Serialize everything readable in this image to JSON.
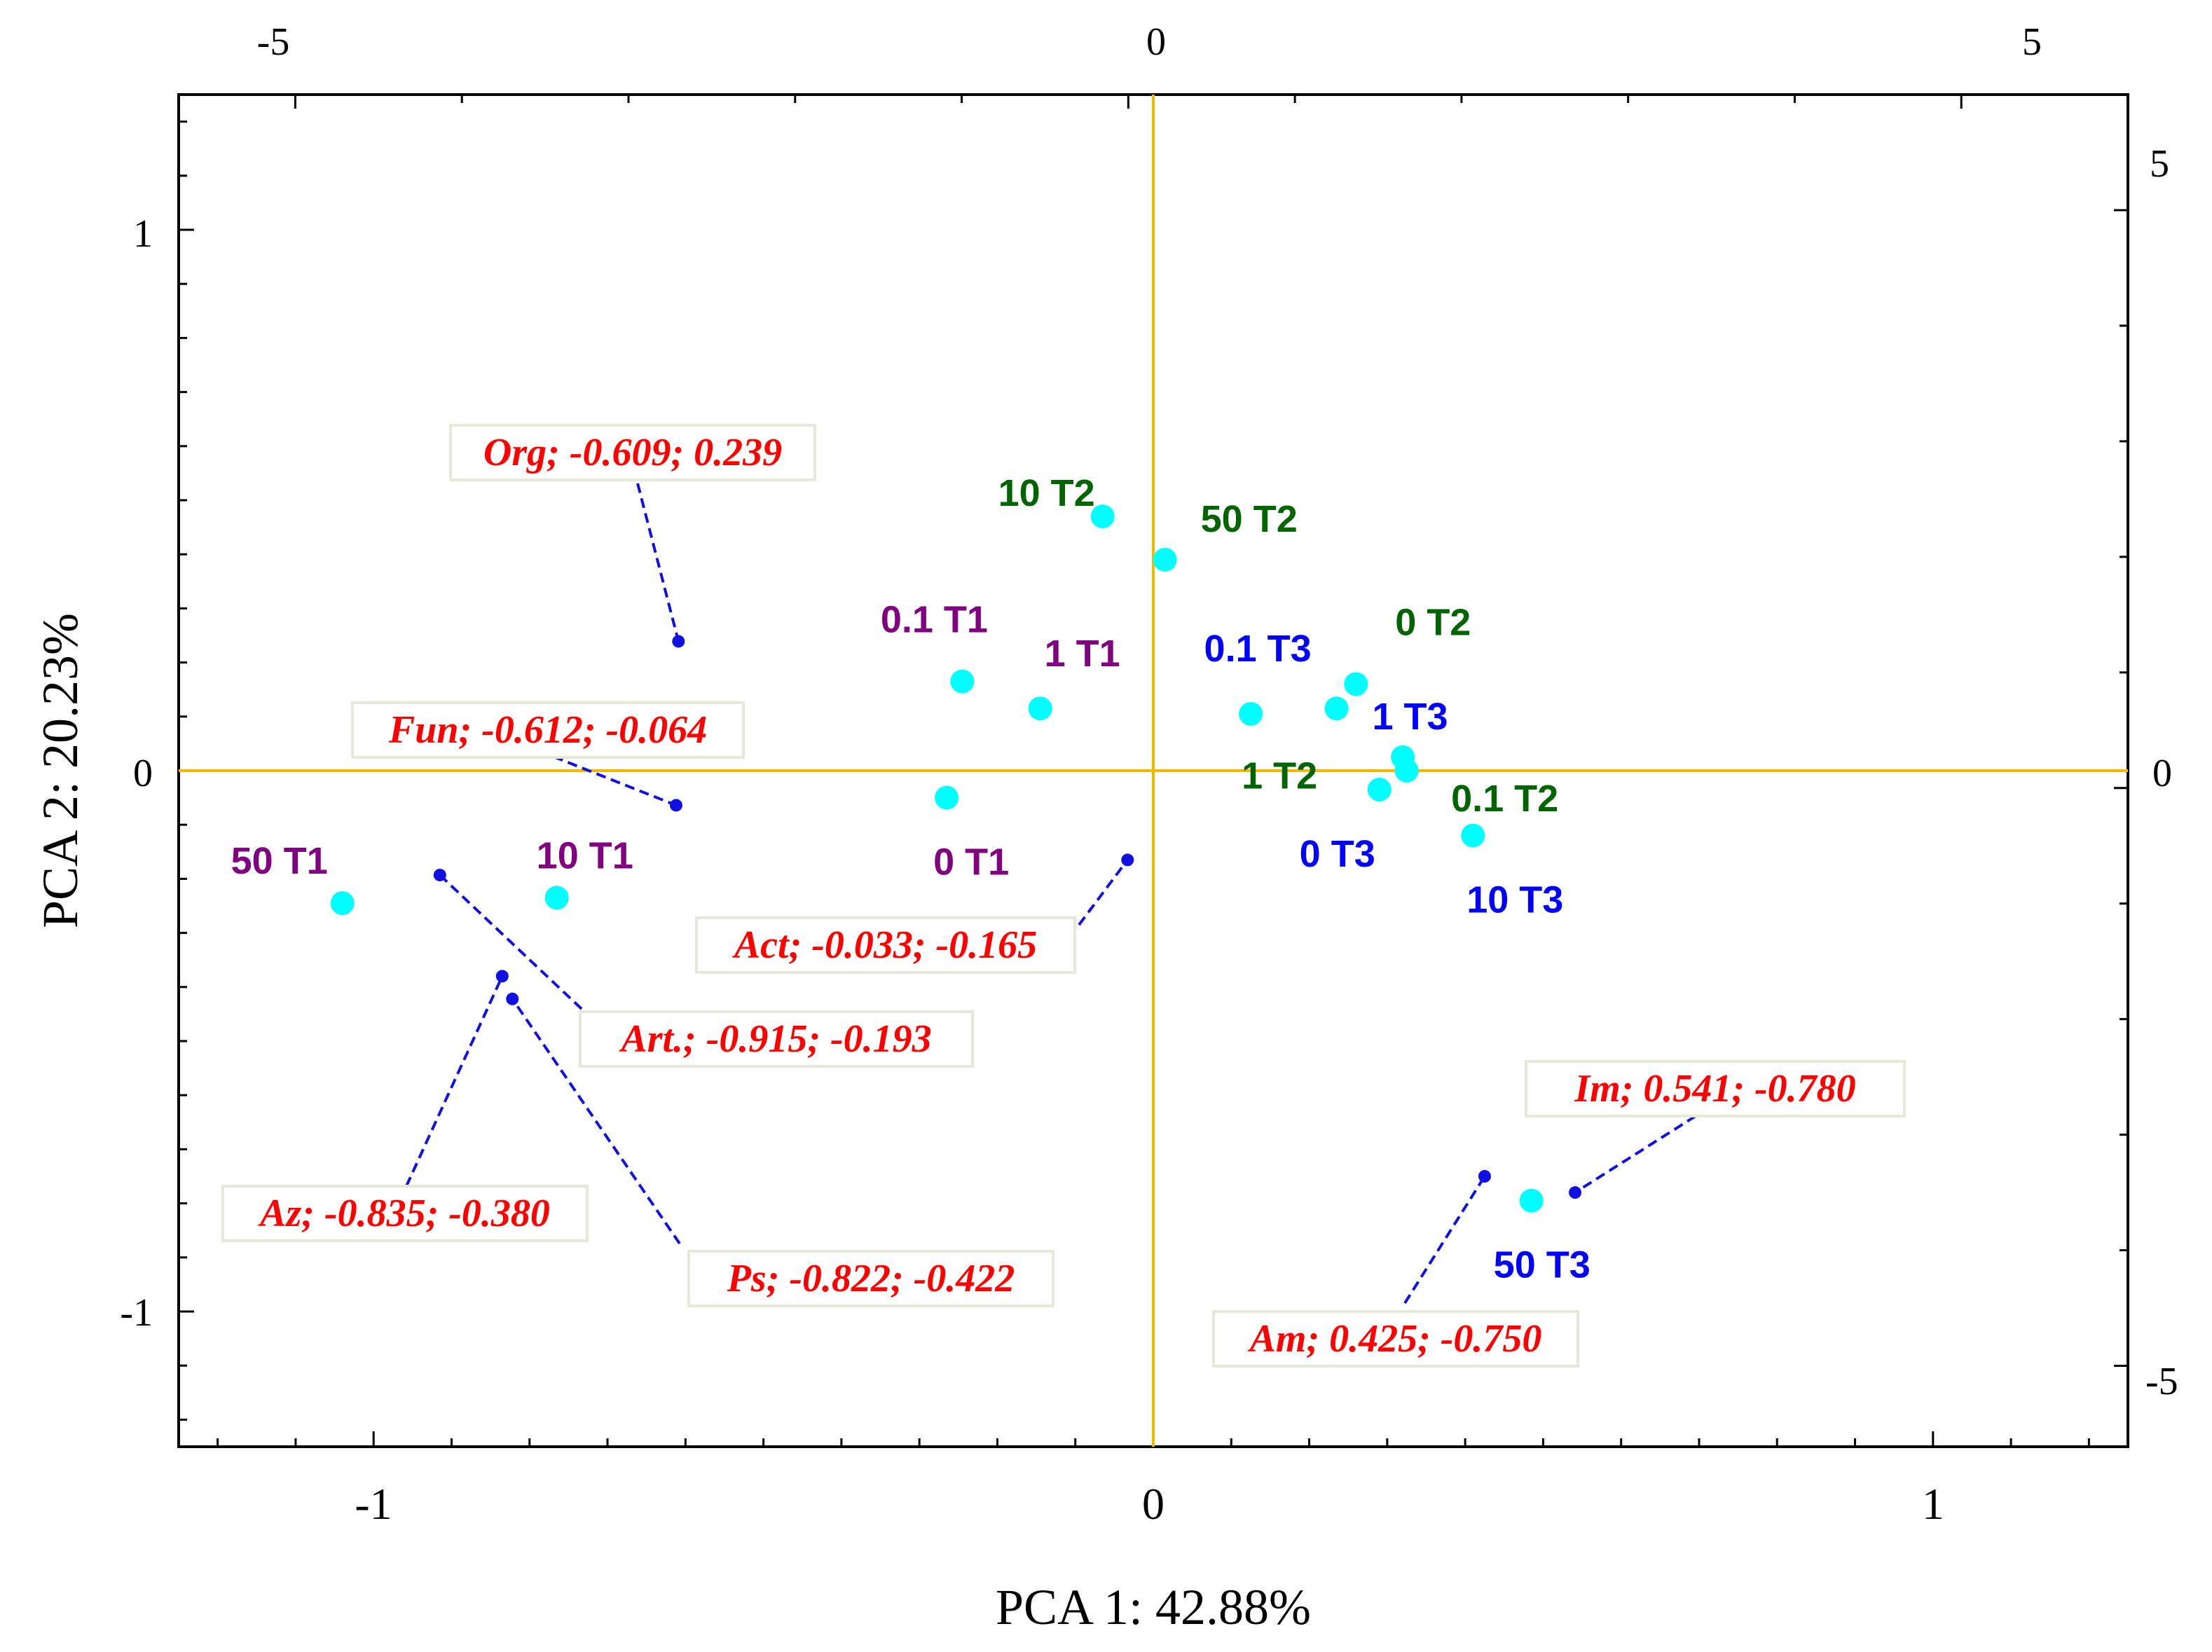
{
  "chart_data": {
    "type": "scatter",
    "title": "",
    "xlabel": "PCA 1: 42.88%",
    "ylabel": "PCA 2: 20.23%",
    "xlim": [
      -1.25,
      1.25
    ],
    "ylim": [
      -1.25,
      1.25
    ],
    "x_ticks": [
      "-1",
      "0",
      "1"
    ],
    "y_ticks": [
      "1",
      "0",
      "-1"
    ],
    "top_xlim": [
      -5.7,
      6.0
    ],
    "top_ticks": [
      "-5",
      "0",
      "5"
    ],
    "right_ylim": [
      -5.7,
      6.0
    ],
    "right_ticks": [
      "5",
      "0",
      "-5"
    ],
    "axis_line_color": "#F5B800",
    "point_color": "#00FFFF",
    "loading_color": "#1010E0",
    "label_color": "#FF0000",
    "group_colors": {
      "T1": "#800080",
      "T2": "#006400",
      "T3": "#0000FF"
    },
    "samples": [
      {
        "label": "10 T2",
        "x": -0.065,
        "y": 0.47,
        "group": "T2"
      },
      {
        "label": "50 T2",
        "x": 0.015,
        "y": 0.39,
        "group": "T2"
      },
      {
        "label": "0.1 T1",
        "x": -0.245,
        "y": 0.165,
        "group": "T1"
      },
      {
        "label": "1 T1",
        "x": -0.145,
        "y": 0.115,
        "group": "T1"
      },
      {
        "label": "0.1 T3",
        "x": 0.125,
        "y": 0.105,
        "group": "T3"
      },
      {
        "label": "0 T2",
        "x": 0.26,
        "y": 0.16,
        "group": "T2"
      },
      {
        "label": "1 T3",
        "x": 0.235,
        "y": 0.115,
        "group": "T3"
      },
      {
        "label": "1 T2",
        "x": 0.32,
        "y": 0.025,
        "group": "T2"
      },
      {
        "label": "0.1 T2",
        "x": 0.325,
        "y": 0.0,
        "group": "T2"
      },
      {
        "label": "0 T3",
        "x": 0.29,
        "y": -0.035,
        "group": "T3"
      },
      {
        "label": "10 T3",
        "x": 0.41,
        "y": -0.12,
        "group": "T3"
      },
      {
        "label": "0 T1",
        "x": -0.265,
        "y": -0.05,
        "group": "T1"
      },
      {
        "label": "50 T1",
        "x": -1.04,
        "y": -0.245,
        "group": "T1"
      },
      {
        "label": "10 T1",
        "x": -0.765,
        "y": -0.235,
        "group": "T1"
      },
      {
        "label": "50 T3",
        "x": 0.485,
        "y": -0.795,
        "group": "T3"
      }
    ],
    "loadings": [
      {
        "label": "Org; -0.609; 0.239",
        "x": -0.609,
        "y": 0.239
      },
      {
        "label": "Fun; -0.612; -0.064",
        "x": -0.612,
        "y": -0.064
      },
      {
        "label": "Act; -0.033; -0.165",
        "x": -0.033,
        "y": -0.165
      },
      {
        "label": "Art.; -0.915; -0.193",
        "x": -0.915,
        "y": -0.193
      },
      {
        "label": "Az; -0.835; -0.380",
        "x": -0.835,
        "y": -0.38
      },
      {
        "label": "Ps; -0.822; -0.422",
        "x": -0.822,
        "y": -0.422
      },
      {
        "label": "Im; 0.541; -0.780",
        "x": 0.541,
        "y": -0.78
      },
      {
        "label": "Am; 0.425; -0.750",
        "x": 0.425,
        "y": -0.75
      }
    ]
  }
}
